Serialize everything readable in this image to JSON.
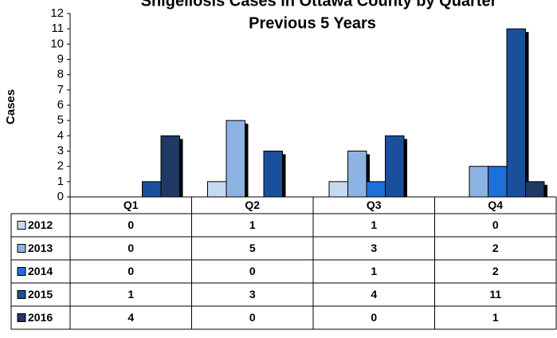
{
  "chart_data": {
    "type": "bar",
    "title": "Shigellosis Cases in Ottawa County by Quarter",
    "subtitle": "Previous 5 Years",
    "y_label": "Cases",
    "categories": [
      "Q1",
      "Q2",
      "Q3",
      "Q4"
    ],
    "series": [
      {
        "name": "2012",
        "color": "#c6d9f1",
        "values": [
          0,
          1,
          1,
          0
        ]
      },
      {
        "name": "2013",
        "color": "#8db3e2",
        "values": [
          0,
          5,
          3,
          2
        ]
      },
      {
        "name": "2014",
        "color": "#1f6fd8",
        "values": [
          0,
          0,
          1,
          2
        ]
      },
      {
        "name": "2015",
        "color": "#1a4f9c",
        "values": [
          1,
          3,
          4,
          11
        ]
      },
      {
        "name": "2016",
        "color": "#1f3864",
        "values": [
          4,
          0,
          0,
          1
        ]
      }
    ],
    "ylim": [
      0,
      12
    ],
    "yticks": [
      0,
      1,
      2,
      3,
      4,
      5,
      6,
      7,
      8,
      9,
      10,
      11,
      12
    ]
  }
}
